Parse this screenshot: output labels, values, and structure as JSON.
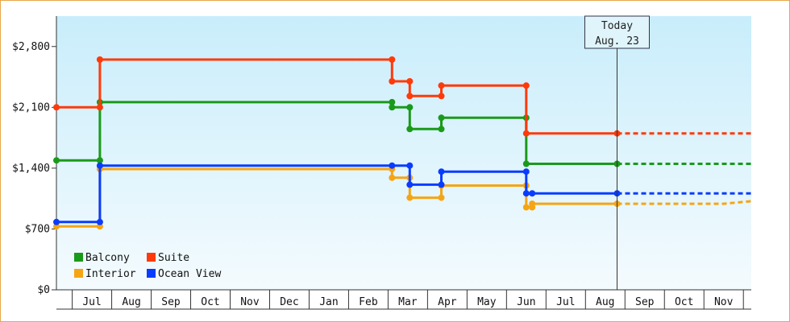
{
  "chart_data": {
    "type": "line",
    "step": true,
    "title": "",
    "xlabel": "",
    "ylabel": "",
    "ylim": [
      0,
      3150
    ],
    "y_ticks": [
      {
        "value": 0,
        "label": "$0"
      },
      {
        "value": 700,
        "label": "$700"
      },
      {
        "value": 1400,
        "label": "$1,400"
      },
      {
        "value": 2100,
        "label": "$2,100"
      },
      {
        "value": 2800,
        "label": "$2,800"
      }
    ],
    "x_range": [
      0,
      17.6
    ],
    "x_months": [
      "Jul",
      "Aug",
      "Sep",
      "Oct",
      "Nov",
      "Dec",
      "Jan",
      "Feb",
      "Mar",
      "Apr",
      "May",
      "Jun",
      "Jul",
      "Aug",
      "Sep",
      "Oct",
      "Nov"
    ],
    "today": {
      "line1": "Today",
      "line2": "Aug. 23",
      "x": 14.2
    },
    "legend": {
      "position": "bottom-left"
    },
    "gradient": {
      "top": "#c9edfb",
      "bottom": "#f4fbfe"
    },
    "series": [
      {
        "name": "Balcony",
        "color": "#1a9a1a",
        "points": [
          [
            0,
            1490
          ],
          [
            1.1,
            1490
          ],
          [
            1.1,
            2160
          ],
          [
            8.5,
            2160
          ],
          [
            8.5,
            2100
          ],
          [
            8.95,
            2100
          ],
          [
            8.95,
            1850
          ],
          [
            9.75,
            1850
          ],
          [
            9.75,
            1980
          ],
          [
            11.9,
            1980
          ],
          [
            11.9,
            1450
          ],
          [
            14.2,
            1450
          ]
        ],
        "future": [
          [
            14.2,
            1450
          ],
          [
            17.6,
            1450
          ]
        ]
      },
      {
        "name": "Suite",
        "color": "#ff3a0a",
        "points": [
          [
            0,
            2100
          ],
          [
            1.1,
            2100
          ],
          [
            1.1,
            2650
          ],
          [
            8.5,
            2650
          ],
          [
            8.5,
            2400
          ],
          [
            8.95,
            2400
          ],
          [
            8.95,
            2230
          ],
          [
            9.75,
            2230
          ],
          [
            9.75,
            2350
          ],
          [
            11.9,
            2350
          ],
          [
            11.9,
            1800
          ],
          [
            14.2,
            1800
          ]
        ],
        "future": [
          [
            14.2,
            1800
          ],
          [
            17.6,
            1800
          ]
        ]
      },
      {
        "name": "Interior",
        "color": "#f5a514",
        "points": [
          [
            0,
            730
          ],
          [
            1.1,
            730
          ],
          [
            1.1,
            1390
          ],
          [
            8.5,
            1390
          ],
          [
            8.5,
            1290
          ],
          [
            8.95,
            1290
          ],
          [
            8.95,
            1060
          ],
          [
            9.75,
            1060
          ],
          [
            9.75,
            1200
          ],
          [
            11.9,
            1200
          ],
          [
            11.9,
            950
          ],
          [
            12.05,
            950
          ],
          [
            12.05,
            990
          ],
          [
            14.2,
            990
          ]
        ],
        "future": [
          [
            14.2,
            990
          ],
          [
            16.9,
            990
          ],
          [
            17.6,
            1020
          ]
        ]
      },
      {
        "name": "Ocean View",
        "color": "#0a3cff",
        "points": [
          [
            0,
            780
          ],
          [
            1.1,
            780
          ],
          [
            1.1,
            1430
          ],
          [
            8.5,
            1430
          ],
          [
            8.95,
            1430
          ],
          [
            8.95,
            1210
          ],
          [
            9.75,
            1210
          ],
          [
            9.75,
            1360
          ],
          [
            11.9,
            1360
          ],
          [
            11.9,
            1110
          ],
          [
            12.05,
            1110
          ],
          [
            14.2,
            1110
          ]
        ],
        "future": [
          [
            14.2,
            1110
          ],
          [
            17.6,
            1110
          ]
        ]
      }
    ]
  }
}
